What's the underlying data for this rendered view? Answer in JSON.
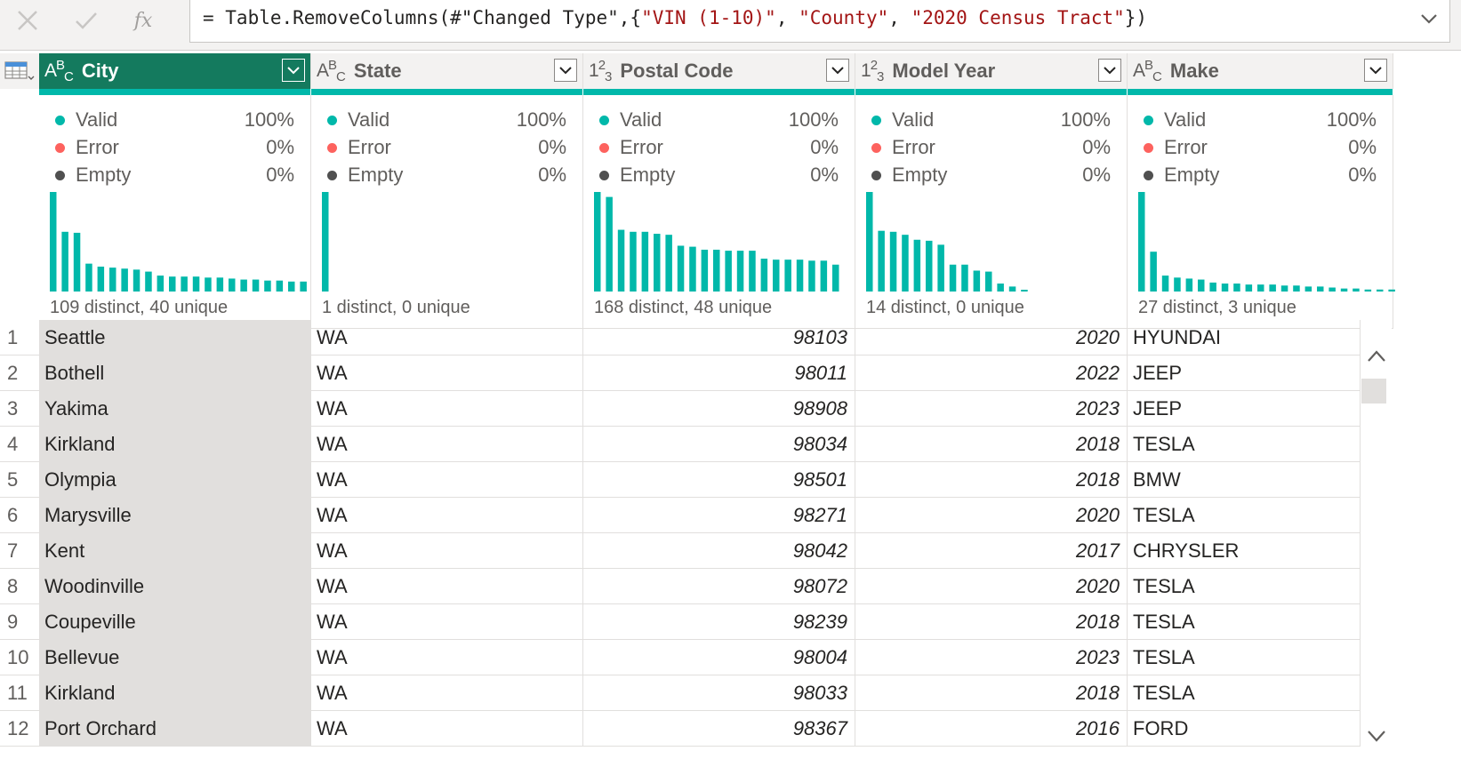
{
  "formula_bar": {
    "cancel_icon": "close-icon",
    "commit_icon": "checkmark-icon",
    "fx_label": "fx",
    "formula_prefix": "= Table.RemoveColumns(#\"Changed Type\",{",
    "formula_arg1": "\"VIN (1-10)\"",
    "formula_sep1": ", ",
    "formula_arg2": "\"County\"",
    "formula_sep2": ", ",
    "formula_arg3": "\"2020 Census Tract\"",
    "formula_suffix": "})"
  },
  "columns": [
    {
      "name": "City",
      "type_prefix": "A",
      "type_sup": "B",
      "type_sub": "C",
      "valid": "100%",
      "error": "0%",
      "empty": "0%",
      "distinct": "109 distinct, 40 unique",
      "histogram": [
        100,
        60,
        59,
        28,
        25,
        24,
        23,
        22,
        20,
        16,
        15,
        15,
        15,
        14,
        14,
        13,
        12,
        12,
        11,
        11,
        10,
        10
      ]
    },
    {
      "name": "State",
      "type_prefix": "A",
      "type_sup": "B",
      "type_sub": "C",
      "valid": "100%",
      "error": "0%",
      "empty": "0%",
      "distinct": "1 distinct, 0 unique",
      "histogram": [
        100
      ]
    },
    {
      "name": "Postal Code",
      "type_prefix": "1",
      "type_sup": "2",
      "type_sub": "3",
      "valid": "100%",
      "error": "0%",
      "empty": "0%",
      "distinct": "168 distinct, 48 unique",
      "histogram": [
        100,
        95,
        62,
        60,
        60,
        58,
        57,
        46,
        45,
        42,
        42,
        41,
        41,
        41,
        33,
        32,
        32,
        32,
        31,
        31,
        27
      ]
    },
    {
      "name": "Model Year",
      "type_prefix": "1",
      "type_sup": "2",
      "type_sub": "3",
      "valid": "100%",
      "error": "0%",
      "empty": "0%",
      "distinct": "14 distinct, 0 unique",
      "histogram": [
        100,
        61,
        60,
        57,
        52,
        51,
        47,
        27,
        27,
        21,
        20,
        8,
        5,
        1
      ]
    },
    {
      "name": "Make",
      "type_prefix": "A",
      "type_sup": "B",
      "type_sub": "C",
      "valid": "100%",
      "error": "0%",
      "empty": "0%",
      "distinct": "27 distinct, 3 unique",
      "histogram": [
        100,
        40,
        16,
        14,
        13,
        12,
        9,
        8,
        8,
        7,
        7,
        7,
        6,
        6,
        5,
        5,
        4,
        3,
        3,
        2,
        2,
        2,
        2
      ]
    }
  ],
  "quality_labels": {
    "valid": "Valid",
    "error": "Error",
    "empty": "Empty"
  },
  "colors": {
    "accent": "#147a5e",
    "valid": "#01b8aa",
    "error": "#fd625e",
    "empty": "#505050"
  },
  "rows": [
    {
      "n": "1",
      "city": "Seattle",
      "state": "WA",
      "postal": "98103",
      "year": "2020",
      "make": "HYUNDAI"
    },
    {
      "n": "2",
      "city": "Bothell",
      "state": "WA",
      "postal": "98011",
      "year": "2022",
      "make": "JEEP"
    },
    {
      "n": "3",
      "city": "Yakima",
      "state": "WA",
      "postal": "98908",
      "year": "2023",
      "make": "JEEP"
    },
    {
      "n": "4",
      "city": "Kirkland",
      "state": "WA",
      "postal": "98034",
      "year": "2018",
      "make": "TESLA"
    },
    {
      "n": "5",
      "city": "Olympia",
      "state": "WA",
      "postal": "98501",
      "year": "2018",
      "make": "BMW"
    },
    {
      "n": "6",
      "city": "Marysville",
      "state": "WA",
      "postal": "98271",
      "year": "2020",
      "make": "TESLA"
    },
    {
      "n": "7",
      "city": "Kent",
      "state": "WA",
      "postal": "98042",
      "year": "2017",
      "make": "CHRYSLER"
    },
    {
      "n": "8",
      "city": "Woodinville",
      "state": "WA",
      "postal": "98072",
      "year": "2020",
      "make": "TESLA"
    },
    {
      "n": "9",
      "city": "Coupeville",
      "state": "WA",
      "postal": "98239",
      "year": "2018",
      "make": "TESLA"
    },
    {
      "n": "10",
      "city": "Bellevue",
      "state": "WA",
      "postal": "98004",
      "year": "2023",
      "make": "TESLA"
    },
    {
      "n": "11",
      "city": "Kirkland",
      "state": "WA",
      "postal": "98033",
      "year": "2018",
      "make": "TESLA"
    },
    {
      "n": "12",
      "city": "Port Orchard",
      "state": "WA",
      "postal": "98367",
      "year": "2016",
      "make": "FORD"
    }
  ]
}
